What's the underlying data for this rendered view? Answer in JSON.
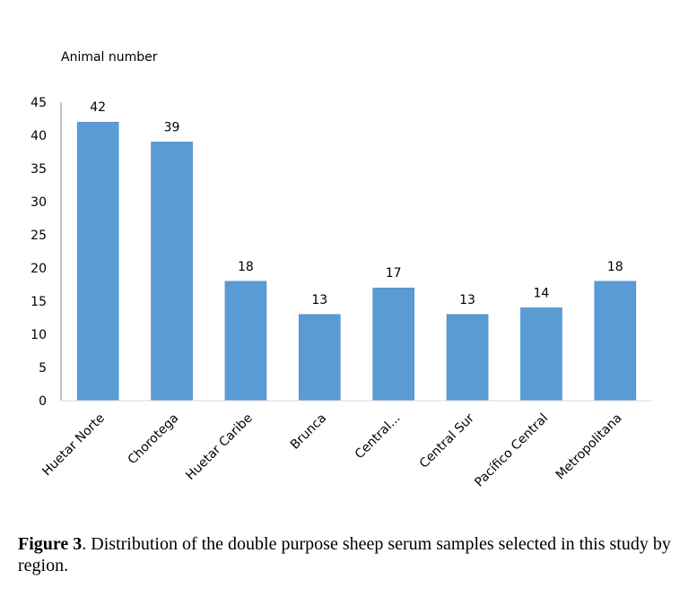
{
  "chart_data": {
    "type": "bar",
    "title": "",
    "ylabel": "Animal number",
    "xlabel": "",
    "categories": [
      "Huetar Norte",
      "Chorotega",
      "Huetar Caribe",
      "Brunca",
      "Central...",
      "Central Sur",
      "Pacífico Central",
      "Metropolitana"
    ],
    "values": [
      42,
      39,
      18,
      13,
      17,
      13,
      14,
      18
    ],
    "ylim": [
      0,
      45
    ],
    "yticks": [
      0,
      5,
      10,
      15,
      20,
      25,
      30,
      35,
      40,
      45
    ],
    "grid": false,
    "legend": "none",
    "bar_color": "#5B9BD5",
    "data_labels": true
  },
  "caption": {
    "label": "Figure 3",
    "text": ". Distribution of the double purpose sheep serum samples selected in this study by region."
  }
}
